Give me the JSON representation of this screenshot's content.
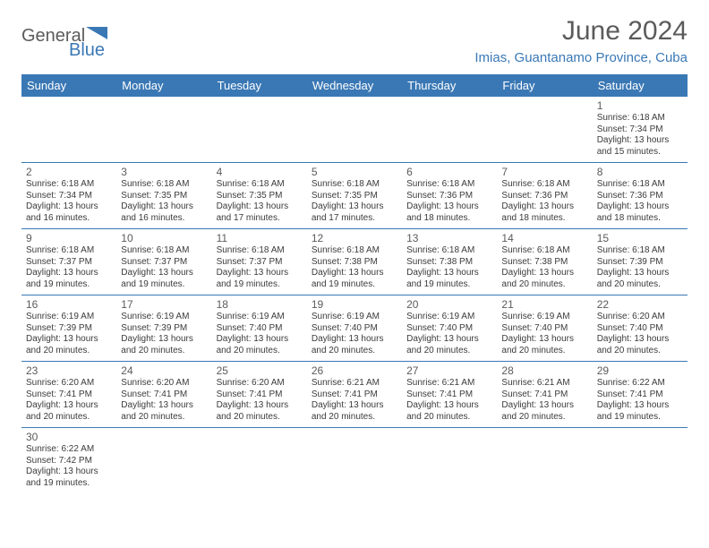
{
  "logo": {
    "text1": "General",
    "text2": "Blue",
    "color1": "#5b5b5b",
    "color2": "#3a78b5"
  },
  "title": "June 2024",
  "subtitle": "Imias, Guantanamo Province, Cuba",
  "colors": {
    "header_bg": "#3a78b5",
    "header_text": "#ffffff",
    "border": "#3a78b5",
    "title_color": "#5b5b5b",
    "subtitle_color": "#3a78b5",
    "daynum_color": "#5b5b5b",
    "text_color": "#3b3b3b",
    "background": "#ffffff"
  },
  "typography": {
    "title_fontsize": 30,
    "subtitle_fontsize": 15,
    "header_fontsize": 13,
    "daynum_fontsize": 12,
    "body_fontsize": 10,
    "font_family": "Arial"
  },
  "calendar": {
    "type": "table",
    "days_of_week": [
      "Sunday",
      "Monday",
      "Tuesday",
      "Wednesday",
      "Thursday",
      "Friday",
      "Saturday"
    ],
    "first_weekday_index": 6,
    "days": [
      {
        "n": 1,
        "sunrise": "6:18 AM",
        "sunset": "7:34 PM",
        "daylight": "13 hours and 15 minutes."
      },
      {
        "n": 2,
        "sunrise": "6:18 AM",
        "sunset": "7:34 PM",
        "daylight": "13 hours and 16 minutes."
      },
      {
        "n": 3,
        "sunrise": "6:18 AM",
        "sunset": "7:35 PM",
        "daylight": "13 hours and 16 minutes."
      },
      {
        "n": 4,
        "sunrise": "6:18 AM",
        "sunset": "7:35 PM",
        "daylight": "13 hours and 17 minutes."
      },
      {
        "n": 5,
        "sunrise": "6:18 AM",
        "sunset": "7:35 PM",
        "daylight": "13 hours and 17 minutes."
      },
      {
        "n": 6,
        "sunrise": "6:18 AM",
        "sunset": "7:36 PM",
        "daylight": "13 hours and 18 minutes."
      },
      {
        "n": 7,
        "sunrise": "6:18 AM",
        "sunset": "7:36 PM",
        "daylight": "13 hours and 18 minutes."
      },
      {
        "n": 8,
        "sunrise": "6:18 AM",
        "sunset": "7:36 PM",
        "daylight": "13 hours and 18 minutes."
      },
      {
        "n": 9,
        "sunrise": "6:18 AM",
        "sunset": "7:37 PM",
        "daylight": "13 hours and 19 minutes."
      },
      {
        "n": 10,
        "sunrise": "6:18 AM",
        "sunset": "7:37 PM",
        "daylight": "13 hours and 19 minutes."
      },
      {
        "n": 11,
        "sunrise": "6:18 AM",
        "sunset": "7:37 PM",
        "daylight": "13 hours and 19 minutes."
      },
      {
        "n": 12,
        "sunrise": "6:18 AM",
        "sunset": "7:38 PM",
        "daylight": "13 hours and 19 minutes."
      },
      {
        "n": 13,
        "sunrise": "6:18 AM",
        "sunset": "7:38 PM",
        "daylight": "13 hours and 19 minutes."
      },
      {
        "n": 14,
        "sunrise": "6:18 AM",
        "sunset": "7:38 PM",
        "daylight": "13 hours and 20 minutes."
      },
      {
        "n": 15,
        "sunrise": "6:18 AM",
        "sunset": "7:39 PM",
        "daylight": "13 hours and 20 minutes."
      },
      {
        "n": 16,
        "sunrise": "6:19 AM",
        "sunset": "7:39 PM",
        "daylight": "13 hours and 20 minutes."
      },
      {
        "n": 17,
        "sunrise": "6:19 AM",
        "sunset": "7:39 PM",
        "daylight": "13 hours and 20 minutes."
      },
      {
        "n": 18,
        "sunrise": "6:19 AM",
        "sunset": "7:40 PM",
        "daylight": "13 hours and 20 minutes."
      },
      {
        "n": 19,
        "sunrise": "6:19 AM",
        "sunset": "7:40 PM",
        "daylight": "13 hours and 20 minutes."
      },
      {
        "n": 20,
        "sunrise": "6:19 AM",
        "sunset": "7:40 PM",
        "daylight": "13 hours and 20 minutes."
      },
      {
        "n": 21,
        "sunrise": "6:19 AM",
        "sunset": "7:40 PM",
        "daylight": "13 hours and 20 minutes."
      },
      {
        "n": 22,
        "sunrise": "6:20 AM",
        "sunset": "7:40 PM",
        "daylight": "13 hours and 20 minutes."
      },
      {
        "n": 23,
        "sunrise": "6:20 AM",
        "sunset": "7:41 PM",
        "daylight": "13 hours and 20 minutes."
      },
      {
        "n": 24,
        "sunrise": "6:20 AM",
        "sunset": "7:41 PM",
        "daylight": "13 hours and 20 minutes."
      },
      {
        "n": 25,
        "sunrise": "6:20 AM",
        "sunset": "7:41 PM",
        "daylight": "13 hours and 20 minutes."
      },
      {
        "n": 26,
        "sunrise": "6:21 AM",
        "sunset": "7:41 PM",
        "daylight": "13 hours and 20 minutes."
      },
      {
        "n": 27,
        "sunrise": "6:21 AM",
        "sunset": "7:41 PM",
        "daylight": "13 hours and 20 minutes."
      },
      {
        "n": 28,
        "sunrise": "6:21 AM",
        "sunset": "7:41 PM",
        "daylight": "13 hours and 20 minutes."
      },
      {
        "n": 29,
        "sunrise": "6:22 AM",
        "sunset": "7:41 PM",
        "daylight": "13 hours and 19 minutes."
      },
      {
        "n": 30,
        "sunrise": "6:22 AM",
        "sunset": "7:42 PM",
        "daylight": "13 hours and 19 minutes."
      }
    ],
    "labels": {
      "sunrise": "Sunrise:",
      "sunset": "Sunset:",
      "daylight": "Daylight:"
    }
  }
}
